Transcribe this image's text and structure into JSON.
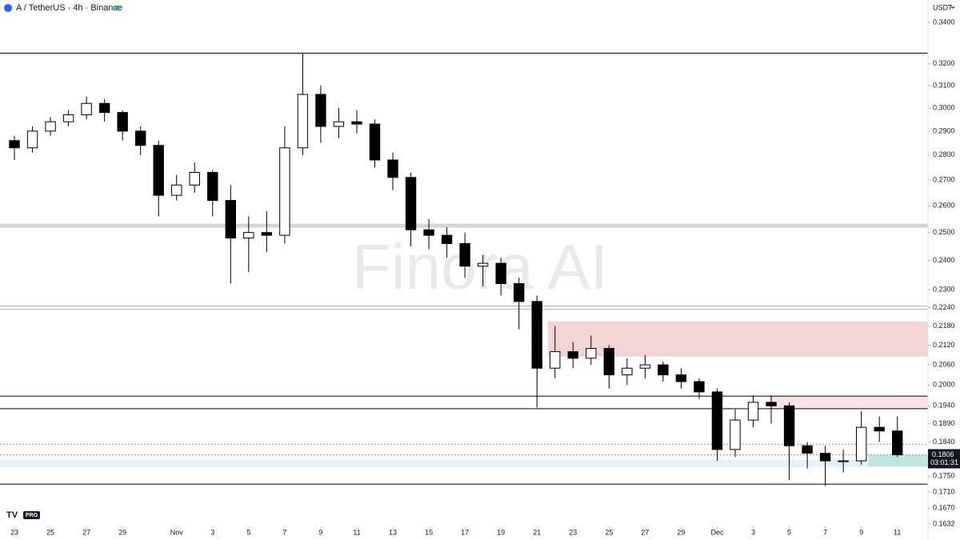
{
  "chart_data": {
    "type": "candlestick",
    "title": "A / TetherUS · 4h · Binance",
    "currency": "USDT",
    "watermark": "Finora AI",
    "logo": "PRO",
    "last_price": 0.1806,
    "countdown": "03:01:31",
    "log_scale": true,
    "up_color": "#ffffff",
    "down_color": "#000000",
    "x": [
      0,
      1,
      2,
      3,
      4,
      5,
      6,
      7,
      8,
      9,
      10,
      11,
      12,
      13,
      14,
      15,
      16,
      17,
      18,
      19,
      20,
      21,
      22,
      23,
      24,
      25,
      26,
      27,
      28,
      29,
      30,
      31,
      32,
      33,
      34,
      35,
      36,
      37,
      38,
      39,
      40,
      41,
      42,
      43,
      44,
      45,
      46,
      47,
      48,
      49
    ],
    "open": [
      0.286,
      0.283,
      0.29,
      0.294,
      0.297,
      0.302,
      0.298,
      0.29,
      0.284,
      0.264,
      0.268,
      0.273,
      0.262,
      0.248,
      0.25,
      0.249,
      0.283,
      0.306,
      0.292,
      0.294,
      0.293,
      0.278,
      0.271,
      0.251,
      0.249,
      0.246,
      0.238,
      0.239,
      0.232,
      0.226,
      0.205,
      0.21,
      0.208,
      0.211,
      0.203,
      0.205,
      0.206,
      0.203,
      0.201,
      0.198,
      0.182,
      0.19,
      0.195,
      0.194,
      0.183,
      0.181,
      0.179,
      0.179,
      0.188,
      0.187
    ],
    "high": [
      0.288,
      0.292,
      0.296,
      0.299,
      0.305,
      0.304,
      0.299,
      0.292,
      0.286,
      0.272,
      0.277,
      0.274,
      0.268,
      0.256,
      0.258,
      0.292,
      0.325,
      0.31,
      0.3,
      0.299,
      0.295,
      0.281,
      0.273,
      0.255,
      0.252,
      0.25,
      0.242,
      0.241,
      0.234,
      0.228,
      0.218,
      0.213,
      0.215,
      0.212,
      0.208,
      0.209,
      0.207,
      0.205,
      0.202,
      0.199,
      0.193,
      0.197,
      0.197,
      0.195,
      0.184,
      0.183,
      0.182,
      0.1925,
      0.191,
      0.191
    ],
    "low": [
      0.278,
      0.281,
      0.288,
      0.292,
      0.295,
      0.294,
      0.286,
      0.28,
      0.256,
      0.262,
      0.265,
      0.256,
      0.232,
      0.236,
      0.243,
      0.246,
      0.28,
      0.285,
      0.287,
      0.289,
      0.275,
      0.266,
      0.245,
      0.244,
      0.241,
      0.234,
      0.231,
      0.228,
      0.217,
      0.1935,
      0.202,
      0.205,
      0.206,
      0.199,
      0.2,
      0.202,
      0.201,
      0.199,
      0.196,
      0.179,
      0.18,
      0.188,
      0.189,
      0.174,
      0.177,
      0.1725,
      0.176,
      0.178,
      0.184,
      0.18
    ],
    "close": [
      0.283,
      0.29,
      0.294,
      0.297,
      0.302,
      0.298,
      0.29,
      0.284,
      0.264,
      0.268,
      0.273,
      0.262,
      0.248,
      0.25,
      0.249,
      0.283,
      0.306,
      0.292,
      0.294,
      0.293,
      0.278,
      0.271,
      0.251,
      0.249,
      0.246,
      0.238,
      0.239,
      0.232,
      0.226,
      0.205,
      0.21,
      0.208,
      0.211,
      0.203,
      0.205,
      0.206,
      0.203,
      0.201,
      0.198,
      0.182,
      0.19,
      0.195,
      0.194,
      0.183,
      0.181,
      0.179,
      0.179,
      0.188,
      0.187,
      0.1806
    ],
    "xlim": [
      -0.8,
      50.7
    ],
    "ylim": [
      0.1632,
      0.34
    ],
    "xticks": [
      {
        "value": 0,
        "label": "23"
      },
      {
        "value": 2,
        "label": "25"
      },
      {
        "value": 4,
        "label": "27"
      },
      {
        "value": 6,
        "label": "29"
      },
      {
        "value": 9,
        "label": "Nov"
      },
      {
        "value": 11,
        "label": "3"
      },
      {
        "value": 13,
        "label": "5"
      },
      {
        "value": 15,
        "label": "7"
      },
      {
        "value": 17,
        "label": "9"
      },
      {
        "value": 19,
        "label": "11"
      },
      {
        "value": 21,
        "label": "13"
      },
      {
        "value": 23,
        "label": "15"
      },
      {
        "value": 25,
        "label": "17"
      },
      {
        "value": 27,
        "label": "19"
      },
      {
        "value": 29,
        "label": "21"
      },
      {
        "value": 31,
        "label": "23"
      },
      {
        "value": 33,
        "label": "25"
      },
      {
        "value": 35,
        "label": "27"
      },
      {
        "value": 37,
        "label": "29"
      },
      {
        "value": 39,
        "label": "Dec"
      },
      {
        "value": 41,
        "label": "3"
      },
      {
        "value": 43,
        "label": "5"
      },
      {
        "value": 45,
        "label": "7"
      },
      {
        "value": 47,
        "label": "9"
      },
      {
        "value": 49,
        "label": "11"
      }
    ],
    "yticks": [
      {
        "value": 0.34,
        "label": "0.3400"
      },
      {
        "value": 0.32,
        "label": "0.3200"
      },
      {
        "value": 0.31,
        "label": "0.3100"
      },
      {
        "value": 0.3,
        "label": "0.3000"
      },
      {
        "value": 0.29,
        "label": "0.2900"
      },
      {
        "value": 0.28,
        "label": "0.2800"
      },
      {
        "value": 0.27,
        "label": "0.2700"
      },
      {
        "value": 0.26,
        "label": "0.2600"
      },
      {
        "value": 0.25,
        "label": "0.2500"
      },
      {
        "value": 0.24,
        "label": "0.2400"
      },
      {
        "value": 0.23,
        "label": "0.2300"
      },
      {
        "value": 0.224,
        "label": "0.2240"
      },
      {
        "value": 0.218,
        "label": "0.2180"
      },
      {
        "value": 0.212,
        "label": "0.2120"
      },
      {
        "value": 0.206,
        "label": "0.2060"
      },
      {
        "value": 0.2,
        "label": "0.2000"
      },
      {
        "value": 0.194,
        "label": "0.1940"
      },
      {
        "value": 0.189,
        "label": "0.1890"
      },
      {
        "value": 0.184,
        "label": "0.1840"
      },
      {
        "value": 0.175,
        "label": "0.1750"
      },
      {
        "value": 0.171,
        "label": "0.1710"
      },
      {
        "value": 0.167,
        "label": "0.1670"
      },
      0.1632
    ],
    "levels": [
      {
        "value": 0.325,
        "color": "#000000",
        "width": 1
      },
      {
        "value": 0.2525,
        "color": "#d6d6d6",
        "width": 5
      },
      {
        "value": 0.2245,
        "color": "#b0b0b0",
        "width": 1
      },
      {
        "value": 0.2235,
        "color": "#b0b0b0",
        "width": 1
      },
      {
        "value": 0.1968,
        "color": "#000000",
        "width": 1
      },
      {
        "value": 0.1932,
        "color": "#000000",
        "width": 1
      },
      {
        "value": 0.1834,
        "color": "#9a9a9a",
        "width": 1,
        "dash": true
      },
      {
        "value": 0.1806,
        "color": "#9a9a9a",
        "width": 1,
        "dash": true
      },
      {
        "value": 0.173,
        "color": "#000000",
        "width": 1
      }
    ],
    "zones": [
      {
        "from": 0.2085,
        "to": 0.2195,
        "start": 29.6,
        "color": "#f2d3d6"
      },
      {
        "from": 0.1932,
        "to": 0.1968,
        "start": 41.9,
        "color": "#fbe3e5"
      },
      {
        "from": 0.1774,
        "to": 0.1793,
        "color": "#e1f1f4"
      },
      {
        "from": 0.1775,
        "to": 0.1806,
        "start": 47.4,
        "color": "#bfe5df"
      }
    ]
  }
}
